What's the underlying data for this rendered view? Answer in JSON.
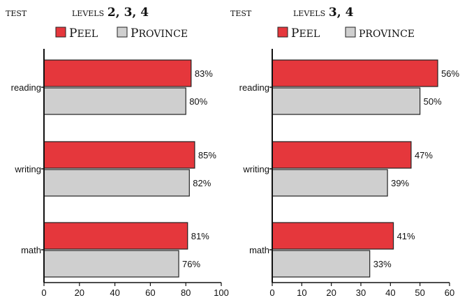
{
  "colors": {
    "peel": "#e5373c",
    "province": "#cfcfcf",
    "outline": "#222222",
    "axis": "#111111"
  },
  "chart_data": [
    {
      "type": "bar",
      "orientation": "horizontal",
      "test_label": "TEST",
      "levels_label": "LEVELS",
      "levels_value": "2, 3, 4",
      "categories": [
        "reading",
        "writing",
        "math"
      ],
      "series": [
        {
          "name": "Peel",
          "legend_first": "P",
          "legend_rest": "EEL",
          "color_key": "peel",
          "values": [
            83,
            85,
            81
          ]
        },
        {
          "name": "Province",
          "legend_first": "P",
          "legend_rest": "ROVINCE",
          "color_key": "province",
          "values": [
            80,
            82,
            76
          ]
        }
      ],
      "value_suffix": "%",
      "xlim": [
        0,
        100
      ],
      "xticks": [
        0,
        20,
        40,
        60,
        80,
        100
      ],
      "legend_position": "top"
    },
    {
      "type": "bar",
      "orientation": "horizontal",
      "test_label": "TEST",
      "levels_label": "LEVELS",
      "levels_value": "3, 4",
      "categories": [
        "reading",
        "writing",
        "math"
      ],
      "series": [
        {
          "name": "Peel",
          "legend_first": "P",
          "legend_rest": "EEL",
          "color_key": "peel",
          "values": [
            56,
            47,
            41
          ]
        },
        {
          "name": "province",
          "legend_first": "",
          "legend_rest": "PROVINCE",
          "color_key": "province",
          "values": [
            50,
            39,
            33
          ]
        }
      ],
      "value_suffix": "%",
      "xlim": [
        0,
        60
      ],
      "xticks": [
        0,
        10,
        20,
        30,
        40,
        50,
        60
      ],
      "legend_position": "top"
    }
  ]
}
